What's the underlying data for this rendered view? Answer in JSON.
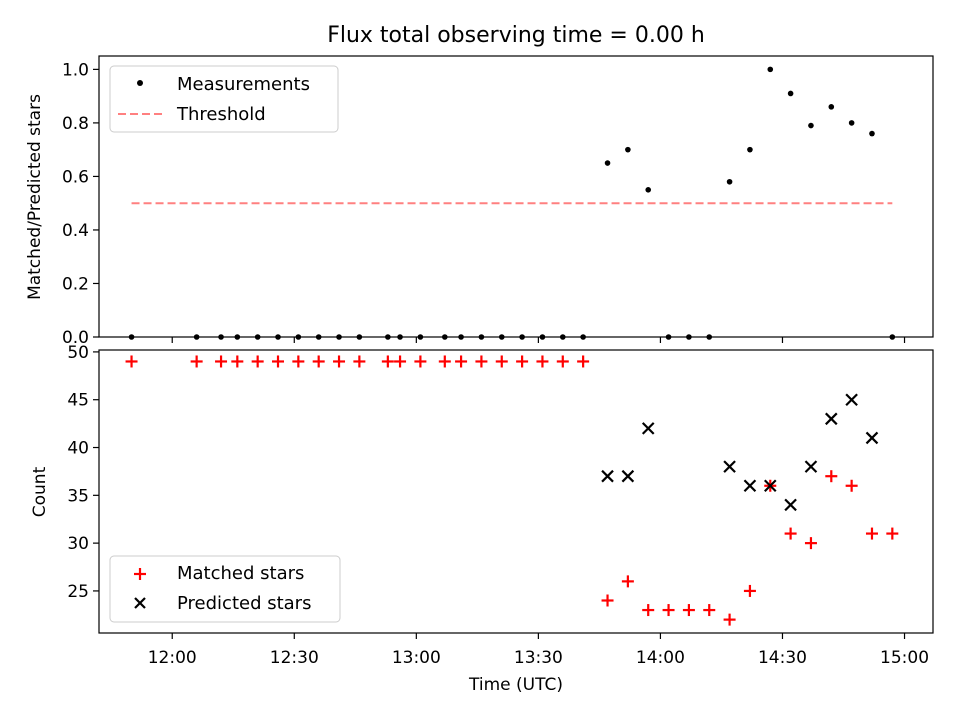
{
  "figure": {
    "title": "Flux total observing time = 0.00 h",
    "xlabel": "Time (UTC)"
  },
  "colors": {
    "measurements": "#000000",
    "threshold": "#ff8080",
    "matched": "#ff0000",
    "predicted": "#000000"
  },
  "chart_data": [
    {
      "type": "scatter",
      "title": "Flux total observing time = 0.00 h",
      "ylabel": "Matched/Predicted stars",
      "xlabel": "",
      "xlim": [
        "11:42",
        "15:07"
      ],
      "ylim": [
        0,
        1.05
      ],
      "yticks": [
        "0.0",
        "0.2",
        "0.4",
        "0.6",
        "0.8",
        "1.0"
      ],
      "grid": false,
      "legend_position": "top-left",
      "series": [
        {
          "name": "Measurements",
          "marker": "dot",
          "x": [
            "11:50",
            "12:06",
            "12:12",
            "12:16",
            "12:21",
            "12:26",
            "12:31",
            "12:36",
            "12:41",
            "12:46",
            "12:53",
            "12:56",
            "13:01",
            "13:07",
            "13:11",
            "13:16",
            "13:21",
            "13:26",
            "13:31",
            "13:36",
            "13:41",
            "13:47",
            "13:52",
            "13:57",
            "14:02",
            "14:07",
            "14:12",
            "14:17",
            "14:22",
            "14:27",
            "14:32",
            "14:37",
            "14:42",
            "14:47",
            "14:52",
            "14:57"
          ],
          "y": [
            0,
            0,
            0,
            0,
            0,
            0,
            0,
            0,
            0,
            0,
            0,
            0,
            0,
            0,
            0,
            0,
            0,
            0,
            0,
            0,
            0,
            0.65,
            0.7,
            0.55,
            0,
            0,
            0,
            0.58,
            0.7,
            1.0,
            0.91,
            0.79,
            0.86,
            0.8,
            0.76,
            0
          ]
        },
        {
          "name": "Threshold",
          "style": "dashed",
          "x": [
            "11:50",
            "14:57"
          ],
          "y": [
            0.5,
            0.5
          ]
        }
      ]
    },
    {
      "type": "scatter",
      "ylabel": "Count",
      "xlabel": "Time (UTC)",
      "xlim": [
        "11:42",
        "15:07"
      ],
      "ylim": [
        20.6,
        50.2
      ],
      "yticks": [
        "25",
        "30",
        "35",
        "40",
        "45",
        "50"
      ],
      "xticks": [
        "12:00",
        "12:30",
        "13:00",
        "13:30",
        "14:00",
        "14:30",
        "15:00"
      ],
      "grid": false,
      "legend_position": "bottom-left",
      "series": [
        {
          "name": "Matched stars",
          "marker": "plus",
          "x": [
            "11:50",
            "12:06",
            "12:12",
            "12:16",
            "12:21",
            "12:26",
            "12:31",
            "12:36",
            "12:41",
            "12:46",
            "12:53",
            "12:56",
            "13:01",
            "13:07",
            "13:11",
            "13:16",
            "13:21",
            "13:26",
            "13:31",
            "13:36",
            "13:41",
            "13:47",
            "13:52",
            "13:57",
            "14:02",
            "14:07",
            "14:12",
            "14:17",
            "14:22",
            "14:27",
            "14:32",
            "14:37",
            "14:42",
            "14:47",
            "14:52",
            "14:57"
          ],
          "y": [
            49,
            49,
            49,
            49,
            49,
            49,
            49,
            49,
            49,
            49,
            49,
            49,
            49,
            49,
            49,
            49,
            49,
            49,
            49,
            49,
            49,
            24,
            26,
            23,
            23,
            23,
            23,
            22,
            25,
            36,
            31,
            30,
            37,
            36,
            31,
            31
          ]
        },
        {
          "name": "Predicted stars",
          "marker": "x",
          "x": [
            "13:47",
            "13:52",
            "13:57",
            "14:17",
            "14:22",
            "14:27",
            "14:32",
            "14:37",
            "14:42",
            "14:47",
            "14:52"
          ],
          "y": [
            37,
            37,
            42,
            38,
            36,
            36,
            34,
            38,
            43,
            45,
            41
          ]
        }
      ]
    }
  ]
}
